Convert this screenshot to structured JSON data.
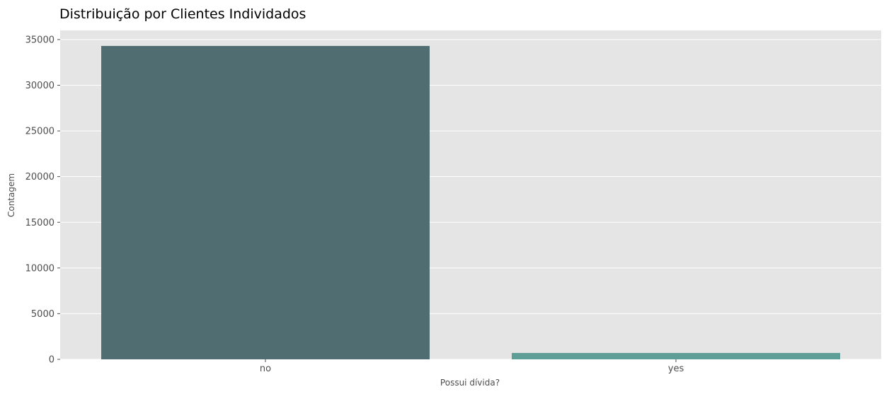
{
  "chart_data": {
    "type": "bar",
    "title": "Distribuição por Clientes Individados",
    "xlabel": "Possui dívida?",
    "ylabel": "Contagem",
    "categories": [
      "no",
      "yes"
    ],
    "values": [
      34300,
      700
    ],
    "ylim": [
      0,
      36000
    ],
    "yticks": [
      0,
      5000,
      10000,
      15000,
      20000,
      25000,
      30000,
      35000
    ],
    "colors": [
      "#506d72",
      "#5f9e96"
    ],
    "plot_background": "#e5e5e5",
    "grid": true,
    "legend": "none"
  }
}
